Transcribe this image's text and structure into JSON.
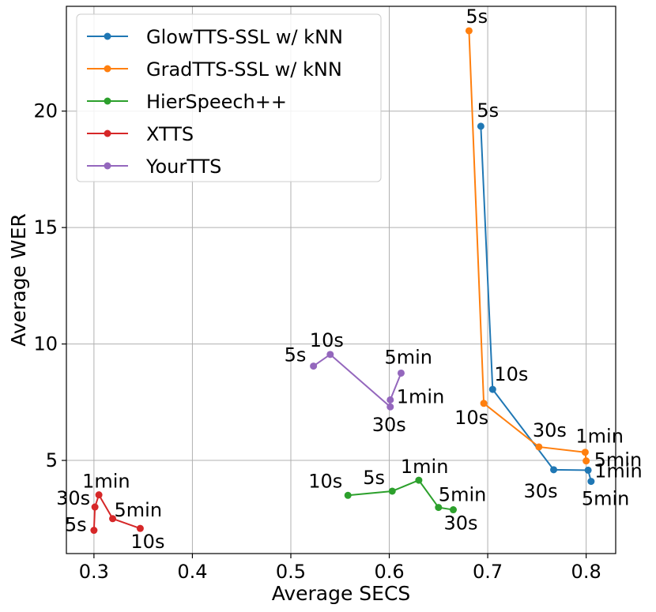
{
  "chart_data": {
    "type": "line",
    "title": "",
    "xlabel": "Average SECS",
    "ylabel": "Average WER",
    "xlim": [
      0.272,
      0.83
    ],
    "ylim": [
      1.0,
      24.5
    ],
    "xticks": [
      0.3,
      0.4,
      0.5,
      0.6,
      0.7,
      0.8
    ],
    "xtick_labels": [
      "0.3",
      "0.4",
      "0.5",
      "0.6",
      "0.7",
      "0.8"
    ],
    "yticks": [
      5,
      10,
      15,
      20
    ],
    "ytick_labels": [
      "5",
      "10",
      "15",
      "20"
    ],
    "grid": true,
    "legend_position": "upper-left",
    "series": [
      {
        "name": "GlowTTS-SSL w/ kNN",
        "color": "#1f77b4",
        "points": [
          {
            "x": 0.693,
            "y": 19.35,
            "label": "5s"
          },
          {
            "x": 0.705,
            "y": 8.05,
            "label": "10s"
          },
          {
            "x": 0.767,
            "y": 4.6,
            "label": "30s"
          },
          {
            "x": 0.802,
            "y": 4.58,
            "label": "1min"
          },
          {
            "x": 0.805,
            "y": 4.1,
            "label": "5min"
          }
        ]
      },
      {
        "name": "GradTTS-SSL w/ kNN",
        "color": "#ff7f0e",
        "points": [
          {
            "x": 0.681,
            "y": 23.45,
            "label": "5s"
          },
          {
            "x": 0.696,
            "y": 7.45,
            "label": "10s"
          },
          {
            "x": 0.752,
            "y": 5.58,
            "label": "30s"
          },
          {
            "x": 0.799,
            "y": 5.35,
            "label": "1min"
          },
          {
            "x": 0.8,
            "y": 4.98,
            "label": "5min"
          }
        ]
      },
      {
        "name": "HierSpeech++",
        "color": "#2ca02c",
        "points": [
          {
            "x": 0.558,
            "y": 3.5,
            "label": "10s"
          },
          {
            "x": 0.603,
            "y": 3.68,
            "label": "5s"
          },
          {
            "x": 0.63,
            "y": 4.15,
            "label": "1min"
          },
          {
            "x": 0.65,
            "y": 2.98,
            "label": "5min"
          },
          {
            "x": 0.665,
            "y": 2.88,
            "label": "30s"
          }
        ]
      },
      {
        "name": "XTTS",
        "color": "#d62728",
        "points": [
          {
            "x": 0.3,
            "y": 2.0,
            "label": "5s"
          },
          {
            "x": 0.301,
            "y": 3.0,
            "label": "30s"
          },
          {
            "x": 0.305,
            "y": 3.52,
            "label": "1min"
          },
          {
            "x": 0.319,
            "y": 2.5,
            "label": "5min"
          },
          {
            "x": 0.347,
            "y": 2.08,
            "label": "10s"
          }
        ]
      },
      {
        "name": "YourTTS",
        "color": "#9467bd",
        "points": [
          {
            "x": 0.523,
            "y": 9.05,
            "label": "5s"
          },
          {
            "x": 0.54,
            "y": 9.55,
            "label": "10s"
          },
          {
            "x": 0.601,
            "y": 7.3,
            "label": "30s"
          },
          {
            "x": 0.601,
            "y": 7.6,
            "label": "1min"
          },
          {
            "x": 0.612,
            "y": 8.75,
            "label": "5min"
          }
        ]
      }
    ]
  }
}
